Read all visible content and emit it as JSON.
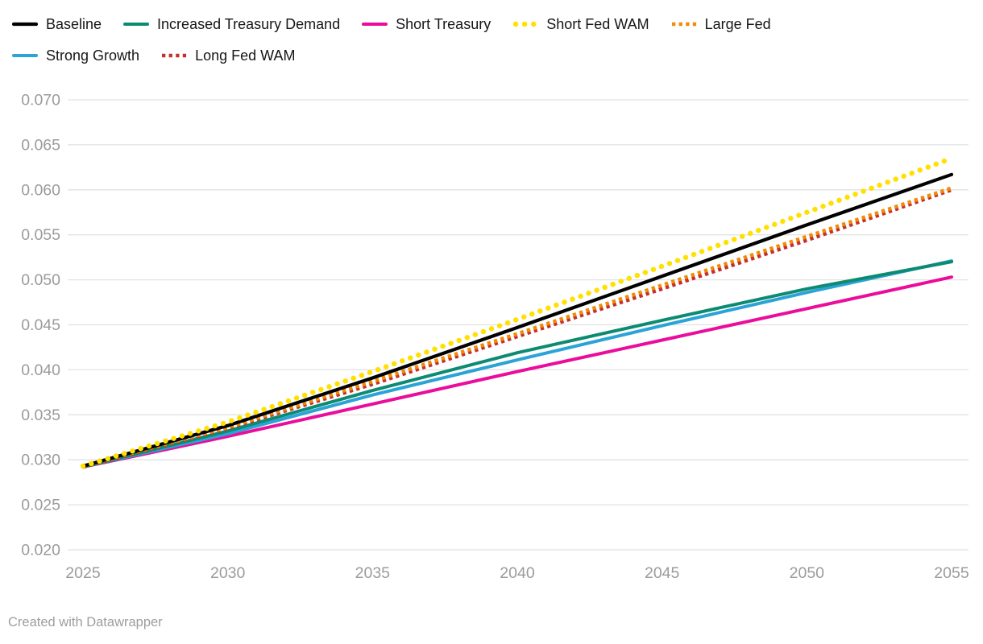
{
  "chart_data": {
    "type": "line",
    "x": [
      2025,
      2030,
      2035,
      2040,
      2045,
      2050,
      2055
    ],
    "xlim": [
      2025,
      2055
    ],
    "ylim": [
      0.02,
      0.07
    ],
    "xticks": [
      2025,
      2030,
      2035,
      2040,
      2045,
      2050,
      2055
    ],
    "yticks": [
      0.02,
      0.025,
      0.03,
      0.035,
      0.04,
      0.045,
      0.05,
      0.055,
      0.06,
      0.065,
      0.07
    ],
    "y_tick_decimals": 3,
    "grid": "horizontal",
    "legend_position": "top",
    "series": [
      {
        "name": "Baseline",
        "color": "#000000",
        "line_style": "solid",
        "line_width": 4.2,
        "legend_row": 1,
        "values": [
          0.0293,
          0.0338,
          0.0391,
          0.0447,
          0.0504,
          0.0561,
          0.0617
        ]
      },
      {
        "name": "Increased Treasury Demand",
        "color": "#0d8b72",
        "line_style": "solid",
        "line_width": 4.0,
        "legend_row": 1,
        "values": [
          0.0292,
          0.0332,
          0.0377,
          0.0419,
          0.0455,
          0.049,
          0.052
        ]
      },
      {
        "name": "Short Treasury",
        "color": "#ea0d9b",
        "line_style": "solid",
        "line_width": 4.0,
        "legend_row": 1,
        "values": [
          0.0292,
          0.0326,
          0.0362,
          0.0398,
          0.0433,
          0.0468,
          0.0503
        ]
      },
      {
        "name": "Short Fed WAM",
        "color": "#ffe000",
        "line_style": "dotted-round",
        "line_width": 6.4,
        "legend_row": 1,
        "values": [
          0.0293,
          0.0342,
          0.0398,
          0.0456,
          0.0515,
          0.0575,
          0.0635
        ]
      },
      {
        "name": "Large Fed",
        "color": "#f08b05",
        "line_style": "dotted-square",
        "line_width": 4.6,
        "legend_row": 1,
        "values": [
          0.0293,
          0.0336,
          0.0387,
          0.044,
          0.0494,
          0.0548,
          0.0602
        ]
      },
      {
        "name": "Strong Growth",
        "color": "#2aa3d6",
        "line_style": "solid",
        "line_width": 4.0,
        "legend_row": 2,
        "values": [
          0.0292,
          0.0329,
          0.0372,
          0.0411,
          0.0449,
          0.0486,
          0.0521
        ]
      },
      {
        "name": "Long Fed WAM",
        "color": "#c7302a",
        "line_style": "dotted-square",
        "line_width": 4.6,
        "legend_row": 2,
        "values": [
          0.0292,
          0.0335,
          0.0384,
          0.0437,
          0.049,
          0.0544,
          0.06
        ]
      }
    ],
    "draw_order": [
      "Short Treasury",
      "Strong Growth",
      "Increased Treasury Demand",
      "Long Fed WAM",
      "Large Fed",
      "Baseline",
      "Short Fed WAM"
    ],
    "colors": {
      "grid": "#e2e2e2",
      "tick_label": "#9b9b9b"
    }
  },
  "footer": {
    "credit": "Created with Datawrapper"
  }
}
